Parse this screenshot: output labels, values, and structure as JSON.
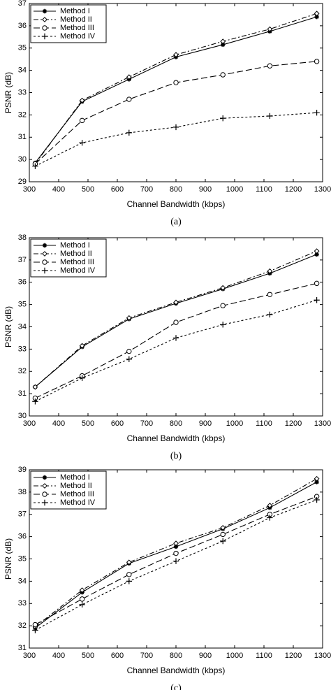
{
  "chart_data": [
    {
      "type": "line",
      "caption": "(a)",
      "xlabel": "Channel Bandwidth (kbps)",
      "ylabel": "PSNR (dB)",
      "x": [
        320,
        480,
        640,
        800,
        960,
        1120,
        1280
      ],
      "xlim": [
        300,
        1300
      ],
      "xticks": [
        300,
        400,
        500,
        600,
        700,
        800,
        900,
        1000,
        1100,
        1200,
        1300
      ],
      "ylim": [
        29,
        37
      ],
      "yticks": [
        29,
        30,
        31,
        32,
        33,
        34,
        35,
        36,
        37
      ],
      "legend": "upper left",
      "series": [
        {
          "name": "Method I",
          "color": "#000000",
          "dash": "solid",
          "marker": "star",
          "values": [
            29.85,
            32.6,
            33.6,
            34.6,
            35.15,
            35.75,
            36.4
          ]
        },
        {
          "name": "Method II",
          "color": "#000000",
          "dash": "dashdot",
          "marker": "diamond",
          "values": [
            29.8,
            32.65,
            33.7,
            34.7,
            35.3,
            35.85,
            36.55
          ]
        },
        {
          "name": "Method III",
          "color": "#000000",
          "dash": "dashed",
          "marker": "circle",
          "values": [
            29.8,
            31.75,
            32.7,
            33.45,
            33.8,
            34.2,
            34.4
          ]
        },
        {
          "name": "Method IV",
          "color": "#000000",
          "dash": "dotted",
          "marker": "plus",
          "values": [
            29.7,
            30.75,
            31.2,
            31.45,
            31.85,
            31.95,
            32.1
          ]
        }
      ]
    },
    {
      "type": "line",
      "caption": "(b)",
      "xlabel": "Channel Bandwidth (kbps)",
      "ylabel": "PSNR (dB)",
      "x": [
        320,
        480,
        640,
        800,
        960,
        1120,
        1280
      ],
      "xlim": [
        300,
        1300
      ],
      "xticks": [
        300,
        400,
        500,
        600,
        700,
        800,
        900,
        1000,
        1100,
        1200,
        1300
      ],
      "ylim": [
        30,
        38
      ],
      "yticks": [
        30,
        31,
        32,
        33,
        34,
        35,
        36,
        37,
        38
      ],
      "legend": "upper left",
      "series": [
        {
          "name": "Method I",
          "color": "#000000",
          "dash": "solid",
          "marker": "star",
          "values": [
            31.3,
            33.1,
            34.35,
            35.05,
            35.7,
            36.4,
            37.25
          ]
        },
        {
          "name": "Method II",
          "color": "#000000",
          "dash": "dashdot",
          "marker": "diamond",
          "values": [
            31.3,
            33.15,
            34.4,
            35.1,
            35.75,
            36.5,
            37.4
          ]
        },
        {
          "name": "Method III",
          "color": "#000000",
          "dash": "dashed",
          "marker": "circle",
          "values": [
            30.8,
            31.8,
            32.9,
            34.2,
            34.95,
            35.45,
            35.95
          ]
        },
        {
          "name": "Method IV",
          "color": "#000000",
          "dash": "dotted",
          "marker": "plus",
          "values": [
            30.65,
            31.7,
            32.55,
            33.5,
            34.1,
            34.55,
            35.2
          ]
        }
      ]
    },
    {
      "type": "line",
      "caption": "(c)",
      "xlabel": "Channel Bandwidth (kbps)",
      "ylabel": "PSNR (dB)",
      "x": [
        320,
        480,
        640,
        800,
        960,
        1120,
        1280
      ],
      "xlim": [
        300,
        1300
      ],
      "xticks": [
        300,
        400,
        500,
        600,
        700,
        800,
        900,
        1000,
        1100,
        1200,
        1300
      ],
      "ylim": [
        31,
        39
      ],
      "yticks": [
        31,
        32,
        33,
        34,
        35,
        36,
        37,
        38,
        39
      ],
      "legend": "upper left",
      "series": [
        {
          "name": "Method I",
          "color": "#000000",
          "dash": "solid",
          "marker": "star",
          "values": [
            31.9,
            33.5,
            34.8,
            35.55,
            36.35,
            37.3,
            38.45
          ]
        },
        {
          "name": "Method II",
          "color": "#000000",
          "dash": "dashdot",
          "marker": "diamond",
          "values": [
            31.95,
            33.6,
            34.85,
            35.7,
            36.4,
            37.4,
            38.6
          ]
        },
        {
          "name": "Method III",
          "color": "#000000",
          "dash": "dashed",
          "marker": "circle",
          "values": [
            32.05,
            33.2,
            34.3,
            35.25,
            36.1,
            37.0,
            37.8
          ]
        },
        {
          "name": "Method IV",
          "color": "#000000",
          "dash": "dotted",
          "marker": "plus",
          "values": [
            31.8,
            32.95,
            34.0,
            34.9,
            35.8,
            36.85,
            37.65
          ]
        }
      ]
    }
  ]
}
